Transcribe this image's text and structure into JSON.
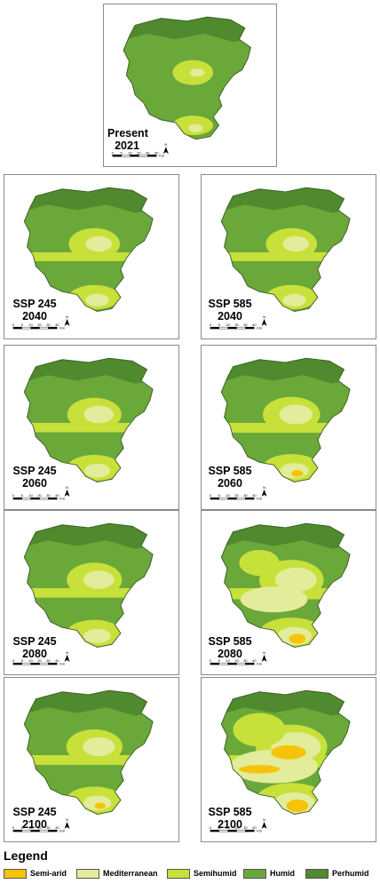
{
  "colors": {
    "semi_arid": "#f5c40a",
    "mediterranean": "#e2ec9a",
    "semihumid": "#c8e03a",
    "humid": "#6aa83a",
    "perhumid": "#4f8a2e"
  },
  "panels": [
    {
      "id": "present-2021",
      "line1": "Present",
      "line2": "2021",
      "dryness": 0
    },
    {
      "id": "ssp245-2040",
      "line1": "SSP 245",
      "line2": "2040",
      "dryness": 1
    },
    {
      "id": "ssp585-2040",
      "line1": "SSP 585",
      "line2": "2040",
      "dryness": 1
    },
    {
      "id": "ssp245-2060",
      "line1": "SSP 245",
      "line2": "2060",
      "dryness": 1.3
    },
    {
      "id": "ssp585-2060",
      "line1": "SSP 585",
      "line2": "2060",
      "dryness": 1.6
    },
    {
      "id": "ssp245-2080",
      "line1": "SSP 245",
      "line2": "2080",
      "dryness": 1.4
    },
    {
      "id": "ssp585-2080",
      "line1": "SSP 585",
      "line2": "2080",
      "dryness": 2.3
    },
    {
      "id": "ssp245-2100",
      "line1": "SSP 245",
      "line2": "2100",
      "dryness": 1.5
    },
    {
      "id": "ssp585-2100",
      "line1": "SSP 585",
      "line2": "2100",
      "dryness": 3
    }
  ],
  "scale_bar": {
    "ticks": [
      "0",
      "5",
      "10",
      "20",
      "30",
      "40"
    ],
    "unit": "Km"
  },
  "legend": {
    "title": "Legend",
    "items": [
      {
        "label": "Semi-arid",
        "color": "#f5c40a"
      },
      {
        "label": "Mediterranean",
        "color": "#e2ec9a"
      },
      {
        "label": "Semihumid",
        "color": "#c8e03a"
      },
      {
        "label": "Humid",
        "color": "#6aa83a"
      },
      {
        "label": "Perhumid",
        "color": "#4f8a2e"
      }
    ]
  }
}
